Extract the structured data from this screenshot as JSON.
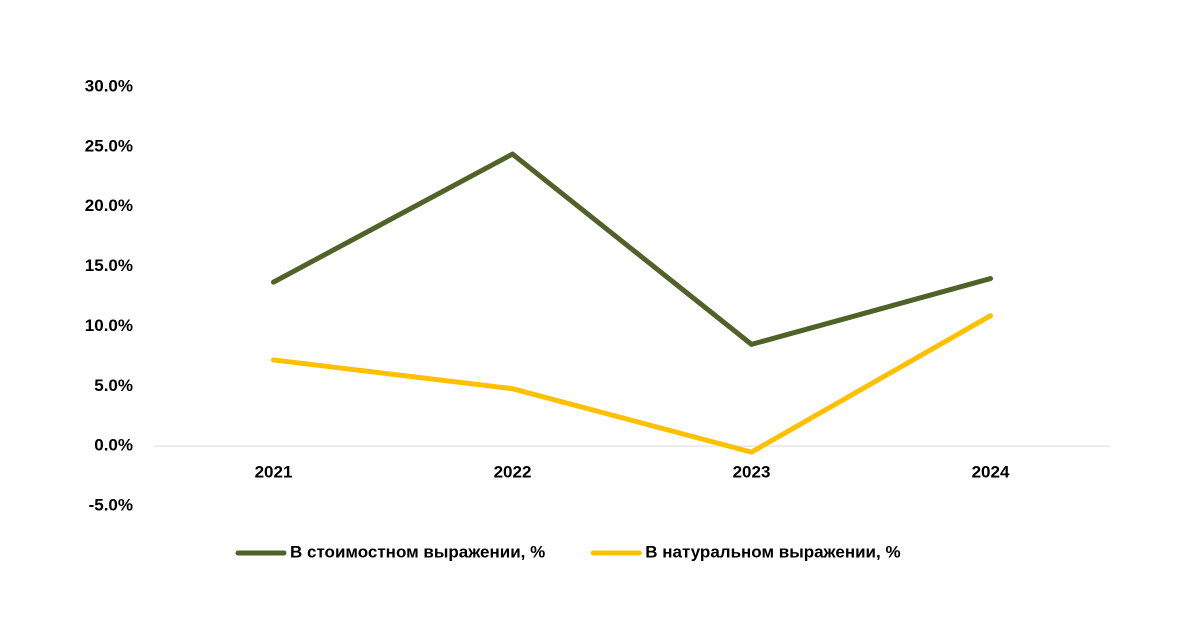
{
  "chart_data": {
    "type": "line",
    "categories": [
      "2021",
      "2022",
      "2023",
      "2024"
    ],
    "series": [
      {
        "name": "В стоимостном выражении, %",
        "color": "#4f6228",
        "values": [
          13.7,
          24.4,
          8.5,
          14.0
        ]
      },
      {
        "name": "В натуральном выражении, %",
        "color": "#ffc000",
        "values": [
          7.2,
          4.8,
          -0.5,
          10.9
        ]
      }
    ],
    "ylim": [
      -5,
      30
    ],
    "yticks": [
      {
        "value": -5,
        "label": "-5.0%"
      },
      {
        "value": 0,
        "label": "0.0%"
      },
      {
        "value": 5,
        "label": "5.0%"
      },
      {
        "value": 10,
        "label": "10.0%"
      },
      {
        "value": 15,
        "label": "15.0%"
      },
      {
        "value": 20,
        "label": "20.0%"
      },
      {
        "value": 25,
        "label": "25.0%"
      },
      {
        "value": 30,
        "label": "30.0%"
      }
    ],
    "grid": false,
    "legend": "bottom"
  }
}
